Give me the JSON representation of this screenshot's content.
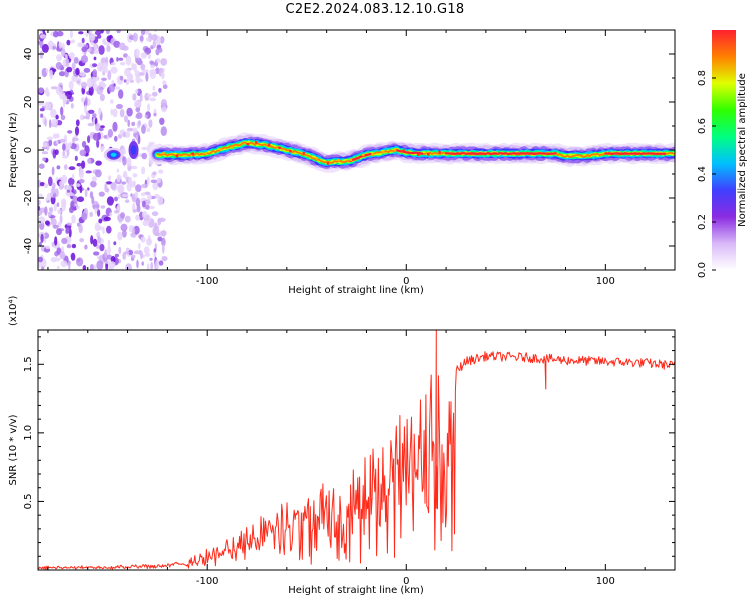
{
  "title": "C2E2.2024.083.12.10.G18",
  "chart_data": [
    {
      "type": "heatmap",
      "xlabel": "Height of straight line (km)",
      "ylabel": "Frequency (Hz)",
      "xlim": [
        -185,
        135
      ],
      "ylim": [
        -50,
        50
      ],
      "xticks": [
        -100,
        0,
        100
      ],
      "yticks": [
        -40,
        -20,
        0,
        20,
        40
      ],
      "colorbar": {
        "label": "Normalized spectral amplitude",
        "range": [
          0,
          1
        ],
        "ticks": [
          "0.0",
          "0.2",
          "0.4",
          "0.6",
          "0.8"
        ],
        "colors": [
          "#ffffff",
          "#d8b8f8",
          "#8a2be2",
          "#4040ff",
          "#00c0ff",
          "#00ff80",
          "#30ff00",
          "#e0ff00",
          "#ff8000",
          "#ff2030"
        ]
      },
      "noise_region_x": [
        -185,
        -125
      ],
      "ridge": {
        "x": [
          -140,
          -125,
          -110,
          -100,
          -90,
          -80,
          -70,
          -60,
          -50,
          -42,
          -35,
          -28,
          -20,
          -12,
          -5,
          0,
          10,
          20,
          40,
          60,
          75,
          80,
          90,
          100,
          110,
          120,
          135
        ],
        "freq": [
          -2,
          -2,
          -2,
          -1.5,
          1,
          3,
          2,
          0,
          -2,
          -5,
          -5,
          -4.5,
          -2,
          -1,
          0,
          -1,
          -1.5,
          -1.5,
          -1.5,
          -1.5,
          -1.5,
          -2.5,
          -2.5,
          -1.5,
          -1.5,
          -1.5,
          -1.5
        ]
      }
    },
    {
      "type": "line",
      "xlabel": "Height of straight line (km)",
      "ylabel": "SNR (10 * v/v)",
      "multiplier": "(x10⁴)",
      "xlim": [
        -185,
        135
      ],
      "ylim": [
        0,
        1.75
      ],
      "xticks": [
        -100,
        0,
        100
      ],
      "yticks": [
        "0.5",
        "1.0",
        "1.5"
      ],
      "color": "#ff2a1a",
      "envelope": {
        "x": [
          -185,
          -140,
          -120,
          -105,
          -95,
          -85,
          -70,
          -50,
          -30,
          -15,
          -5,
          0,
          5,
          10,
          15,
          20,
          25,
          30,
          40,
          60,
          80,
          100,
          120,
          135
        ],
        "y": [
          0.02,
          0.03,
          0.04,
          0.08,
          0.15,
          0.22,
          0.32,
          0.5,
          0.7,
          0.85,
          0.98,
          1.05,
          1.15,
          1.2,
          1.3,
          1.3,
          1.45,
          1.52,
          1.56,
          1.55,
          1.53,
          1.52,
          1.51,
          1.49
        ]
      },
      "spikes": [
        {
          "x": 15,
          "y": 1.75
        },
        {
          "x": 15,
          "y": 0.45
        },
        {
          "x": 70,
          "y": 1.32
        }
      ]
    }
  ]
}
